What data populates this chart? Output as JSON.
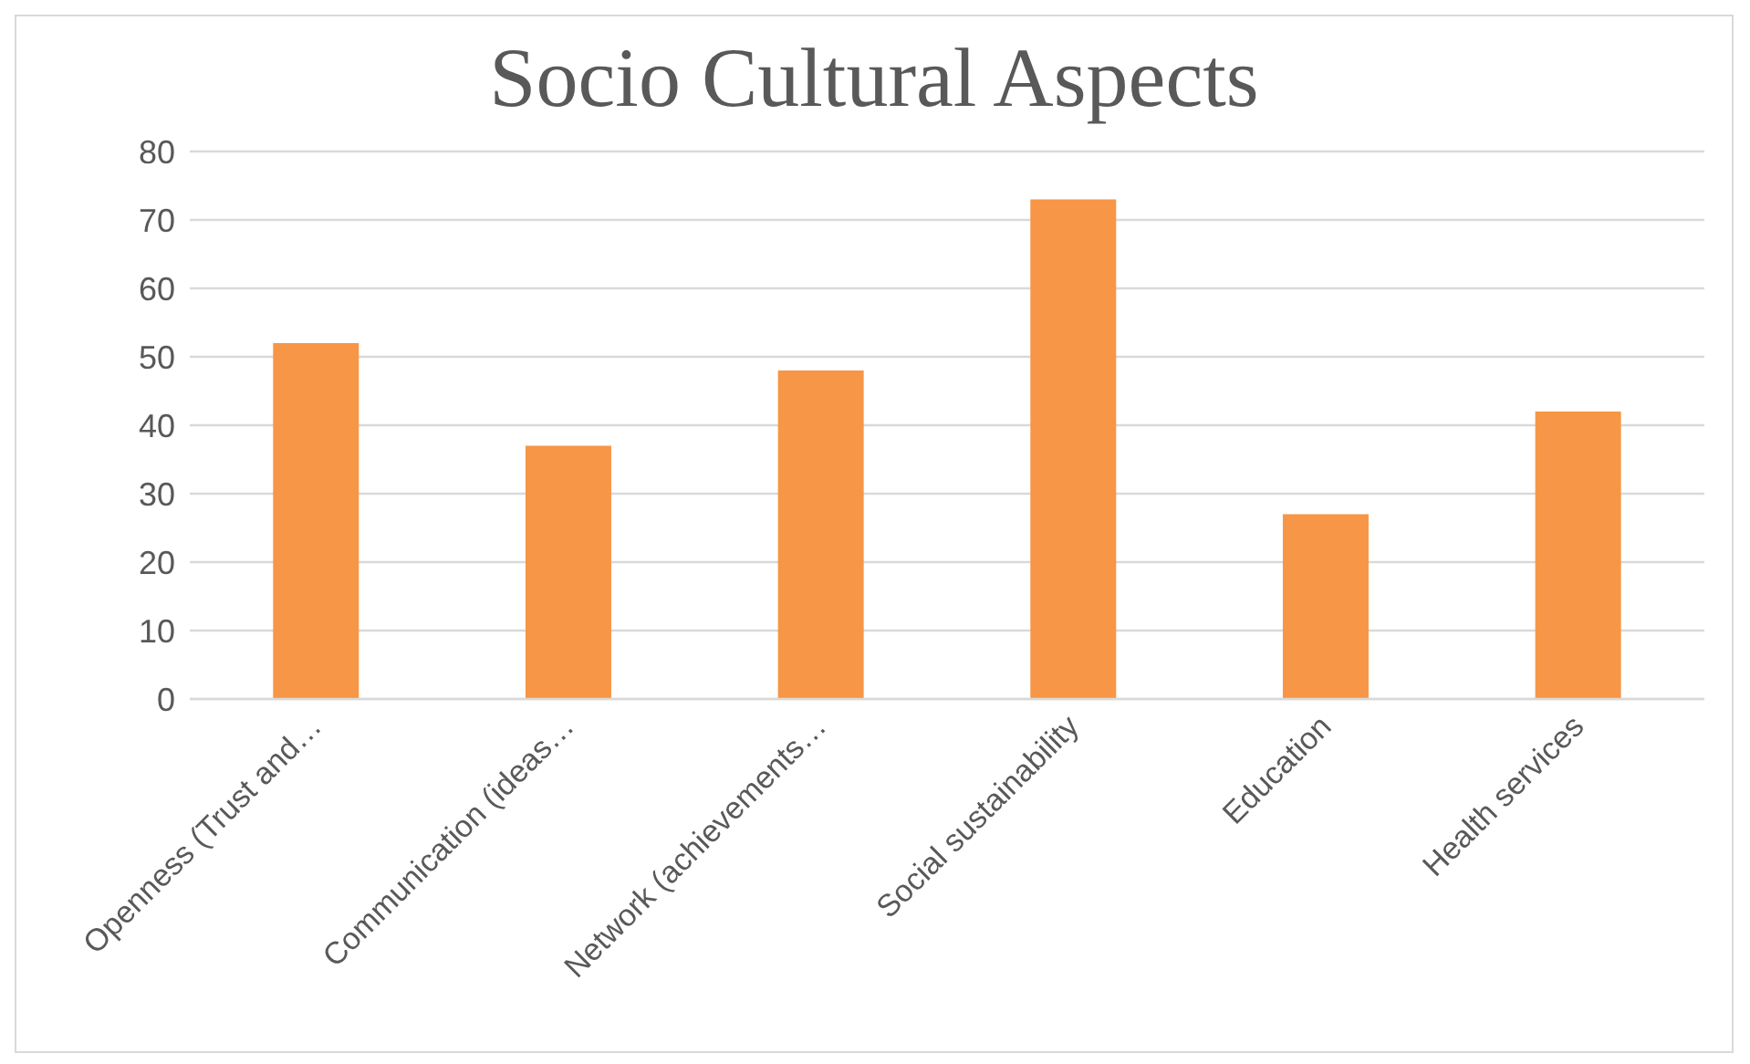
{
  "chart_data": {
    "type": "bar",
    "title": "Socio Cultural Aspects",
    "categories": [
      "Openness (Trust and…",
      "Communication (ideas…",
      "Network (achievements…",
      "Social sustainability",
      "Education",
      "Health services"
    ],
    "values": [
      52,
      37,
      48,
      73,
      27,
      42
    ],
    "color": "#f79646",
    "ylim": [
      0,
      80
    ],
    "yticks": [
      0,
      10,
      20,
      30,
      40,
      50,
      60,
      70,
      80
    ],
    "grid": "y"
  }
}
